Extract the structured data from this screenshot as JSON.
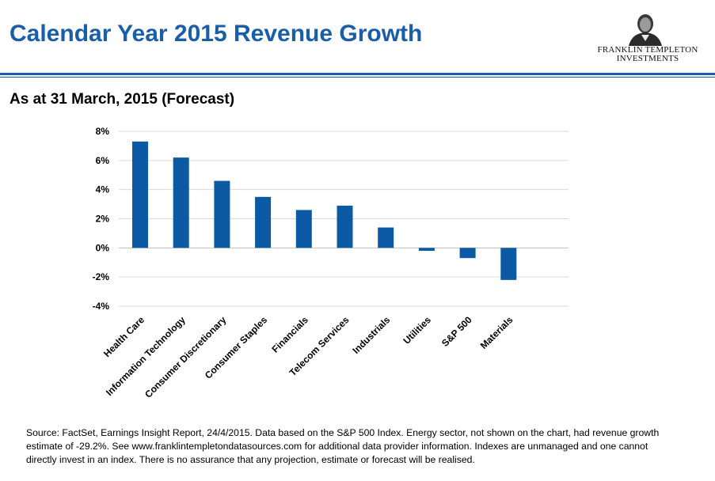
{
  "header": {
    "title": "Calendar Year 2015 Revenue Growth",
    "logo_line1": "FRANKLIN TEMPLETON",
    "logo_line2": "INVESTMENTS"
  },
  "subtitle": "As at 31 March, 2015 (Forecast)",
  "colors": {
    "accent": "#1a5ea8",
    "bar": "#0b5aa3",
    "grid": "#d9d9d9"
  },
  "chart_data": {
    "type": "bar",
    "title": "",
    "xlabel": "",
    "ylabel": "",
    "categories": [
      "Health Care",
      "Information Technology",
      "Consumer Discretionary",
      "Consumer Staples",
      "Financials",
      "Telecom Services",
      "Industrials",
      "Utilities",
      "S&P 500",
      "Materials"
    ],
    "values": [
      7.3,
      6.2,
      4.6,
      3.5,
      2.6,
      2.9,
      1.4,
      -0.2,
      -0.7,
      -2.2
    ],
    "ylim": [
      -4,
      8
    ],
    "yticks": [
      8,
      6,
      4,
      2,
      0,
      -2,
      -4
    ],
    "ytick_labels": [
      "8%",
      "6%",
      "4%",
      "2%",
      "0%",
      "-2%",
      "-4%"
    ],
    "grid": true,
    "legend": "none"
  },
  "footnote": "Source: FactSet, Earnings Insight Report, 24/4/2015. Data based on the S&P 500 Index. Energy sector, not shown on the chart, had revenue growth estimate of -29.2%. See www.franklintempletondatasources.com for additional data provider information. Indexes are unmanaged and one cannot directly invest in an index. There is no assurance that any projection, estimate or forecast will be realised."
}
